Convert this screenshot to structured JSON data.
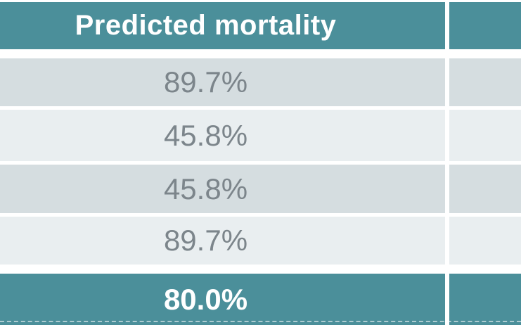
{
  "table": {
    "header": {
      "col1": "Predicted mortality",
      "col2": ""
    },
    "rows": [
      {
        "col1": "89.7%",
        "col2": ""
      },
      {
        "col1": "45.8%",
        "col2": ""
      },
      {
        "col1": "45.8%",
        "col2": ""
      },
      {
        "col1": "89.7%",
        "col2": ""
      }
    ],
    "footer": {
      "col1": "80.0%",
      "col2": ""
    }
  },
  "colors": {
    "header_background": "#4B8F9A",
    "footer_background": "#4B8F9A",
    "row_dark_background": "#D5DDE0",
    "row_light_background": "#E9EEF0",
    "separator": "#FFFFFF",
    "header_text": "#FFFFFF",
    "footer_text": "#FFFFFF",
    "value_text": "#7C858B"
  }
}
